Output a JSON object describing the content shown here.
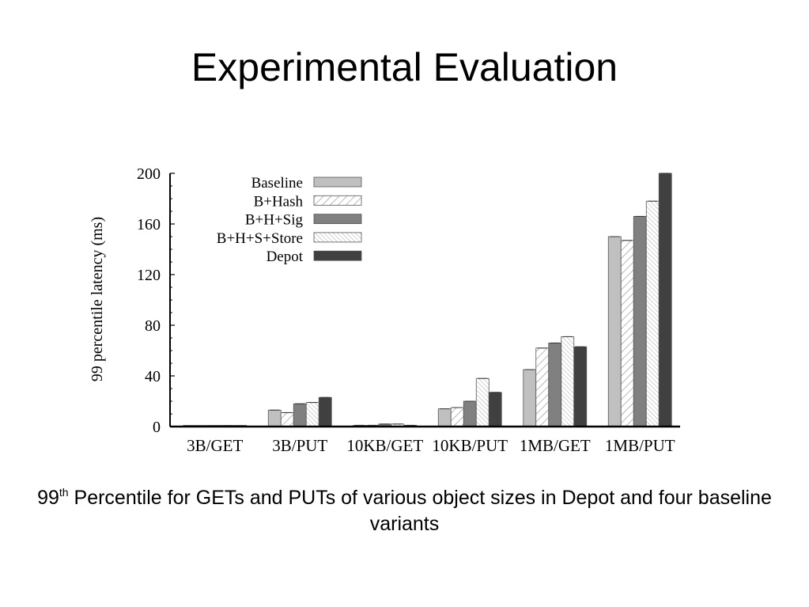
{
  "slide": {
    "title": "Experimental Evaluation",
    "caption": {
      "number": "99",
      "superscript": "th",
      "text": " Percentile for GETs and PUTs of various object sizes in Depot and four baseline variants"
    }
  },
  "chart_data": {
    "type": "bar",
    "title": "",
    "xlabel": "",
    "ylabel": "99 percentile latency (ms)",
    "ylim": [
      0,
      200
    ],
    "yticks": [
      0,
      40,
      80,
      120,
      160,
      200
    ],
    "grid": false,
    "legend_position": "top-left",
    "categories": [
      "3B/GET",
      "3B/PUT",
      "10KB/GET",
      "10KB/PUT",
      "1MB/GET",
      "1MB/PUT"
    ],
    "series": [
      {
        "name": "Baseline",
        "color": "#c0c0c0",
        "pattern": "solid",
        "values": [
          0.5,
          13,
          1,
          14,
          45,
          150
        ]
      },
      {
        "name": "B+Hash",
        "color": "#ffffff",
        "pattern": "diagonal-hatch",
        "values": [
          0.5,
          11,
          1,
          15,
          62,
          147
        ]
      },
      {
        "name": "B+H+Sig",
        "color": "#808080",
        "pattern": "solid",
        "values": [
          0.6,
          18,
          2,
          20,
          66,
          166
        ]
      },
      {
        "name": "B+H+S+Store",
        "color": "#ffffff",
        "pattern": "diagonal-hatch-dense",
        "values": [
          0.7,
          19,
          2,
          38,
          71,
          178
        ]
      },
      {
        "name": "Depot",
        "color": "#404040",
        "pattern": "solid",
        "values": [
          0.6,
          23,
          1,
          27,
          63,
          200
        ]
      }
    ]
  }
}
